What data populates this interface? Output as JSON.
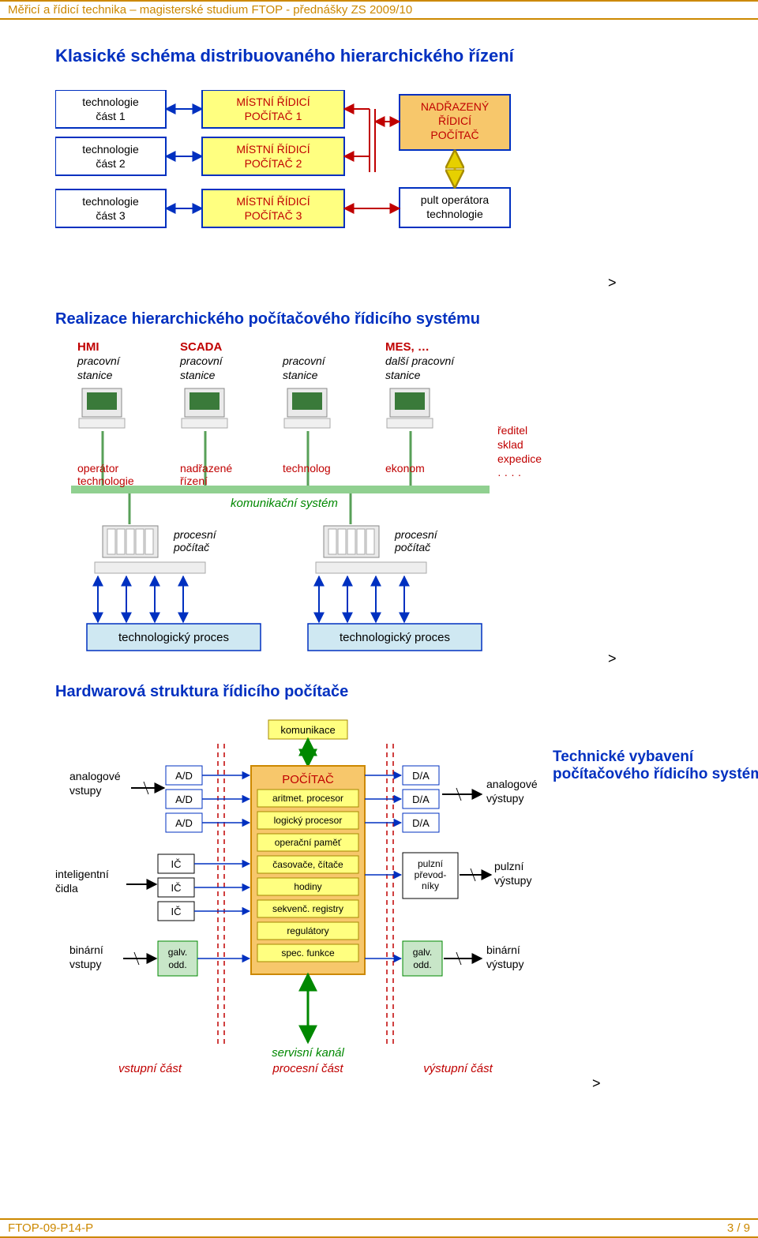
{
  "meta": {
    "header_left": "Měřicí a řídicí technika – magisterské studium FTOP - přednášky ZS 2009/10",
    "footer_left": "FTOP-09-P14-P",
    "footer_right": "3 / 9"
  },
  "colors": {
    "title": "#0030c0",
    "border_orange": "#cc8800",
    "box_border": "#0030c0",
    "red": "#c00000",
    "green": "#008800",
    "olive": "#a58a00",
    "blue": "#0030c0",
    "black": "#000000",
    "fill_orange": "#f7c76b",
    "fill_yellow": "#ffff80",
    "fill_green": "#c8e6c8",
    "fill_lightblue": "#cfe8f2",
    "fill_grey": "#eaeaea",
    "dashed": "#c00000"
  },
  "diagram1": {
    "title": "Klasické schéma distribuovaného hierarchického řízení",
    "left": [
      {
        "l1": "technologie",
        "l2": "část 1"
      },
      {
        "l1": "technologie",
        "l2": "část 2"
      },
      {
        "l1": "technologie",
        "l2": "část 3"
      }
    ],
    "mid": [
      {
        "l1": "MÍSTNÍ ŘÍDICÍ",
        "l2": "POČÍTAČ  1"
      },
      {
        "l1": "MÍSTNÍ ŘÍDICÍ",
        "l2": "POČÍTAČ  2"
      },
      {
        "l1": "MÍSTNÍ ŘÍDICÍ",
        "l2": "POČÍTAČ  3"
      }
    ],
    "right_top": {
      "l1": "NADŘAZENÝ",
      "l2": "ŘÍDICÍ",
      "l3": "POČÍTAČ"
    },
    "right_bot": {
      "l1": "pult  operátora",
      "l2": "technologie"
    }
  },
  "diagram2": {
    "title": "Realizace hierarchického počítačového řídicího systému",
    "stations": [
      {
        "t1": "HMI",
        "t2": "pracovní",
        "t3": "stanice",
        "role": "operátor",
        "role2": "technologie",
        "t1c": "#c00000"
      },
      {
        "t1": "SCADA",
        "t2": "pracovní",
        "t3": "stanice",
        "role": "nadřazené",
        "role2": "řízení",
        "t1c": "#c00000"
      },
      {
        "t1": "",
        "t2": "pracovní",
        "t3": "stanice",
        "role": "technolog",
        "role2": "",
        "t1c": "#000"
      },
      {
        "t1": "MES, …",
        "t2": "další pracovní",
        "t3": "stanice",
        "role": "ekonom",
        "role2": "",
        "t1c": "#c00000"
      }
    ],
    "reditel": [
      "ředitel",
      "sklad",
      "expedice",
      "· · · ·"
    ],
    "comm": "komunikační systém",
    "proc": "procesní\npočítač",
    "techproc": "technologický proces"
  },
  "diagram3": {
    "title": "Hardwarová struktura řídicího počítače",
    "side_title": "Technické vybavení počítačového řídicího systému",
    "comm": "komunikace",
    "left_labels": {
      "analog": "analogové\nvstupy",
      "intel": "inteligentní\nčidla",
      "bin": "binární\nvstupy"
    },
    "right_labels": {
      "analog": "analogové\nvýstupy",
      "pulse": "pulzní\nvýstupy",
      "bin": "binární\nvýstupy"
    },
    "ad": "A/D",
    "da": "D/A",
    "ic": "IČ",
    "galv": "galv.\nodd.",
    "pulz": "pulzní\npřevod-\nníky",
    "cpu_title": "POČÍTAČ",
    "cpu_rows": [
      "aritmet. procesor",
      "logický procesor",
      "operační paměť",
      "časovače, čítače",
      "hodiny",
      "sekvenč. registry",
      "regulátory",
      "spec. funkce"
    ],
    "bottom": {
      "in": "vstupní část",
      "proc": "procesní část",
      "out": "výstupní část",
      "serv": "servisní kanál"
    }
  }
}
